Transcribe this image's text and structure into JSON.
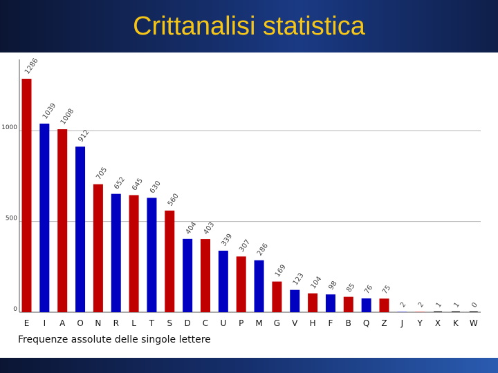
{
  "slide": {
    "title": "Crittanalisi statistica",
    "caption": "Frequenze assolute delle singole lettere"
  },
  "colors": {
    "red": "#c00000",
    "blue": "#0000c0",
    "title": "#f5c518"
  },
  "chart_data": {
    "type": "bar",
    "title": "",
    "xlabel": "Frequenze assolute delle singole lettere",
    "ylabel": "",
    "ylim": [
      0,
      1400
    ],
    "yticks": [
      0,
      500,
      1000
    ],
    "grid": true,
    "categories": [
      "E",
      "I",
      "A",
      "O",
      "N",
      "R",
      "L",
      "T",
      "S",
      "D",
      "C",
      "U",
      "P",
      "M",
      "G",
      "V",
      "H",
      "F",
      "B",
      "Q",
      "Z",
      "J",
      "Y",
      "X",
      "K",
      "W"
    ],
    "values": [
      1286,
      1039,
      1008,
      912,
      705,
      652,
      645,
      630,
      560,
      404,
      403,
      339,
      307,
      286,
      169,
      123,
      104,
      98,
      85,
      76,
      75,
      2,
      2,
      1,
      1,
      0
    ],
    "bar_colors": [
      "red",
      "blue",
      "red",
      "blue",
      "red",
      "blue",
      "red",
      "blue",
      "red",
      "blue",
      "red",
      "blue",
      "red",
      "blue",
      "red",
      "blue",
      "red",
      "blue",
      "red",
      "blue",
      "red",
      "blue",
      "red",
      "blue",
      "red",
      "blue"
    ]
  }
}
